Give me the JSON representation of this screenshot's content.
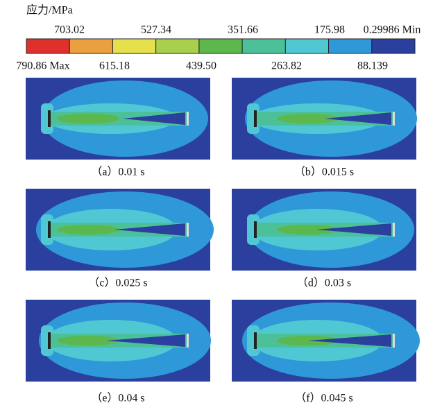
{
  "legend": {
    "title": "应力/MPa",
    "top_labels": [
      "703.02",
      "527.34",
      "351.66",
      "175.98",
      "0.29986 Min"
    ],
    "bottom_labels": [
      "790.86 Max",
      "615.18",
      "439.50",
      "263.82",
      "88.139"
    ],
    "colors": [
      "#e0302c",
      "#eba040",
      "#e6e04c",
      "#a8d04c",
      "#5cb84c",
      "#4cc098",
      "#50c8d4",
      "#2f98d8",
      "#2a3f9e"
    ]
  },
  "panels": [
    {
      "caption": "（a）0.01 s"
    },
    {
      "caption": "（b）0.015 s"
    },
    {
      "caption": "（c）0.025 s"
    },
    {
      "caption": "（d）0.03 s"
    },
    {
      "caption": "（e）0.04 s"
    },
    {
      "caption": "（f）0.045 s"
    }
  ]
}
